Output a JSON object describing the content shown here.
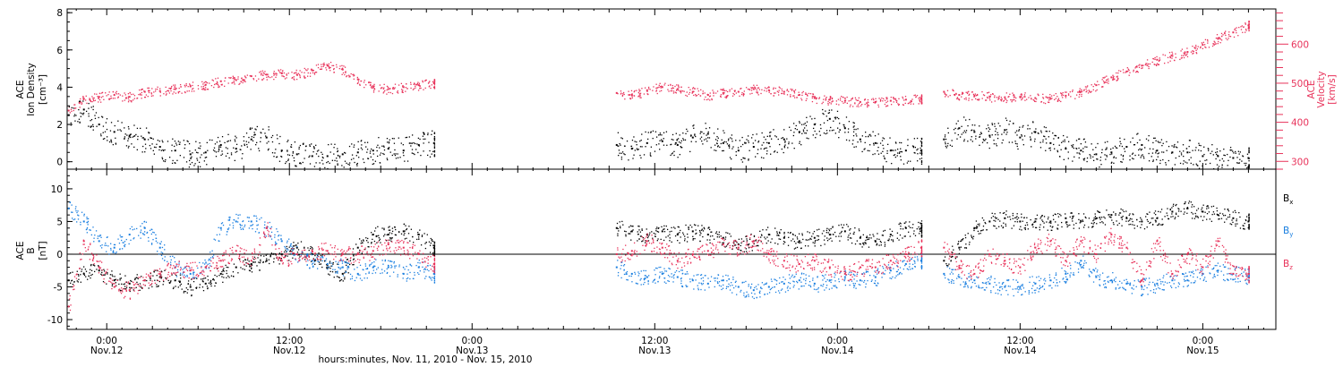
{
  "chart_data": [
    {
      "type": "scatter",
      "xlabel": "hours:minutes, Nov. 11, 2010 - Nov. 15, 2010",
      "x_ticks": [
        {
          "time": "0:00",
          "date": "Nov.12"
        },
        {
          "time": "12:00",
          "date": "Nov.12"
        },
        {
          "time": "0:00",
          "date": "Nov.13"
        },
        {
          "time": "12:00",
          "date": "Nov.13"
        },
        {
          "time": "0:00",
          "date": "Nov.14"
        },
        {
          "time": "12:00",
          "date": "Nov.14"
        },
        {
          "time": "0:00",
          "date": "Nov.15"
        }
      ],
      "xlim_hours_from_nov12": [
        -2.6,
        76.8
      ],
      "ylabel": "ACE\nIon Density\n[cm⁻³]",
      "ylim": [
        -0.4,
        8.2
      ],
      "yticks": [
        0,
        2,
        4,
        6,
        8
      ],
      "y2label": "ACE\nVelocity\n[km/s]",
      "y2lim": [
        280,
        690
      ],
      "y2ticks": [
        300,
        400,
        500,
        600
      ],
      "series": [
        {
          "name": "",
          "axis": "left",
          "color": "#000000",
          "segments": [
            {
              "x": [
                -2.5,
                -1.5,
                -0.5,
                0.5,
                1.5,
                2.5,
                3.5,
                4.5,
                5.5,
                6.5,
                7.5,
                8.5,
                9.5,
                10.5,
                11.5,
                12.5,
                13.5,
                14.5,
                15.5,
                16.5,
                17.5,
                18.5,
                19.5,
                20.5,
                21.5
              ],
              "y": [
                2.5,
                2.8,
                2.0,
                1.6,
                1.4,
                1.2,
                0.8,
                0.6,
                0.4,
                0.5,
                0.9,
                0.7,
                1.2,
                1.3,
                0.6,
                0.4,
                0.3,
                0.3,
                0.4,
                0.5,
                0.6,
                0.7,
                0.6,
                0.9,
                1.0
              ]
            },
            {
              "x": [
                33.5,
                34.5,
                35.5,
                36.5,
                37.5,
                38.5,
                39.5,
                40.5,
                41.5,
                42.5,
                43.5,
                44.5,
                45.5,
                46.5,
                47.5,
                48.5,
                49.5,
                50.5,
                51.5,
                52.5,
                53.5
              ],
              "y": [
                0.9,
                0.7,
                1.0,
                1.1,
                0.9,
                1.3,
                1.5,
                1.0,
                0.6,
                0.8,
                1.0,
                1.2,
                1.6,
                2.0,
                2.3,
                1.8,
                1.2,
                1.0,
                0.6,
                0.6,
                0.6
              ]
            },
            {
              "x": [
                55.0,
                56.0,
                57.0,
                58.0,
                59.0,
                60.0,
                61.0,
                62.0,
                63.0,
                64.0,
                65.0,
                66.0,
                67.0,
                68.0,
                69.0,
                70.0,
                71.0,
                72.0,
                73.0,
                74.0,
                75.0
              ],
              "y": [
                1.2,
                1.8,
                1.6,
                1.4,
                1.7,
                1.3,
                1.6,
                1.0,
                0.7,
                0.6,
                0.4,
                0.5,
                0.8,
                0.9,
                0.6,
                0.5,
                0.5,
                0.3,
                0.3,
                0.2,
                0.2
              ]
            }
          ]
        },
        {
          "name": "",
          "axis": "right",
          "color": "#e8325a",
          "segments": [
            {
              "x": [
                -2.5,
                -1.5,
                -0.5,
                0.5,
                1.5,
                2.5,
                3.5,
                4.5,
                5.5,
                6.5,
                7.5,
                8.5,
                9.5,
                10.5,
                11.5,
                12.5,
                13.5,
                14.5,
                15.5,
                16.5,
                17.5,
                18.5,
                19.5,
                20.5,
                21.5
              ],
              "y": [
                430,
                460,
                465,
                470,
                465,
                478,
                480,
                485,
                492,
                496,
                505,
                508,
                518,
                522,
                525,
                522,
                533,
                545,
                535,
                510,
                490,
                485,
                490,
                495,
                500
              ]
            },
            {
              "x": [
                33.5,
                34.5,
                35.5,
                36.5,
                37.5,
                38.5,
                39.5,
                40.5,
                41.5,
                42.5,
                43.5,
                44.5,
                45.5,
                46.5,
                47.5,
                48.5,
                49.5,
                50.5,
                51.5,
                52.5,
                53.5
              ],
              "y": [
                475,
                470,
                482,
                490,
                485,
                478,
                470,
                475,
                478,
                485,
                482,
                478,
                470,
                462,
                458,
                455,
                452,
                452,
                455,
                458,
                460
              ]
            },
            {
              "x": [
                55.0,
                56.0,
                57.0,
                58.0,
                59.0,
                60.0,
                61.0,
                62.0,
                63.0,
                64.0,
                65.0,
                66.0,
                67.0,
                68.0,
                69.0,
                70.0,
                71.0,
                72.0,
                73.0,
                74.0,
                75.0
              ],
              "y": [
                478,
                470,
                468,
                466,
                464,
                465,
                462,
                460,
                468,
                478,
                495,
                515,
                530,
                545,
                560,
                570,
                580,
                598,
                615,
                630,
                648
              ]
            }
          ]
        }
      ]
    },
    {
      "type": "scatter",
      "ylabel": "ACE\nB\n[nT]",
      "ylim": [
        -11.5,
        13
      ],
      "yticks": [
        -10,
        -5,
        0,
        5,
        10
      ],
      "zero_line": true,
      "series": [
        {
          "name": "Bx",
          "color": "#000000",
          "segments": [
            {
              "x": [
                -2.5,
                -1.5,
                -0.5,
                0.5,
                1.5,
                2.5,
                3.5,
                4.5,
                5.5,
                6.5,
                7.5,
                8.5,
                9.5,
                10.5,
                11.5,
                12.5,
                13.5,
                14.5,
                15.5,
                16.5,
                17.5,
                18.5,
                19.5,
                20.5,
                21.5
              ],
              "y": [
                -4.0,
                -3.0,
                -2.5,
                -4.0,
                -4.5,
                -4.0,
                -3.5,
                -4.0,
                -5.0,
                -4.5,
                -3.0,
                -2.0,
                -1.5,
                -1.0,
                0.0,
                1.0,
                0.0,
                -2.0,
                -3.0,
                1.0,
                3.0,
                3.0,
                3.5,
                3.0,
                1.0
              ]
            },
            {
              "x": [
                33.5,
                34.5,
                35.5,
                36.5,
                37.5,
                38.5,
                39.5,
                40.5,
                41.5,
                42.5,
                43.5,
                44.5,
                45.5,
                46.5,
                47.5,
                48.5,
                49.5,
                50.5,
                51.5,
                52.5,
                53.5
              ],
              "y": [
                4.0,
                3.5,
                3.0,
                3.5,
                3.0,
                3.5,
                3.0,
                2.5,
                1.5,
                2.0,
                3.0,
                2.5,
                2.0,
                2.5,
                3.0,
                3.5,
                2.5,
                2.0,
                3.0,
                4.0,
                4.0
              ]
            },
            {
              "x": [
                55.0,
                56.0,
                57.0,
                58.0,
                59.0,
                60.0,
                61.0,
                62.0,
                63.0,
                64.0,
                65.0,
                66.0,
                67.0,
                68.0,
                69.0,
                70.0,
                71.0,
                72.0,
                73.0,
                74.0,
                75.0
              ],
              "y": [
                -1.0,
                1.0,
                4.0,
                5.0,
                5.5,
                5.0,
                5.0,
                5.0,
                5.5,
                5.0,
                5.5,
                6.0,
                5.5,
                5.0,
                5.5,
                6.5,
                7.0,
                6.5,
                6.0,
                5.5,
                5.0
              ]
            }
          ]
        },
        {
          "name": "By",
          "color": "#1a7fe0",
          "segments": [
            {
              "x": [
                -2.5,
                -1.5,
                -0.5,
                0.5,
                1.5,
                2.5,
                3.5,
                4.5,
                5.5,
                6.5,
                7.5,
                8.5,
                9.5,
                10.5,
                11.5,
                12.5,
                13.5,
                14.5,
                15.5,
                16.5,
                17.5,
                18.5,
                19.5,
                20.5,
                21.5
              ],
              "y": [
                7.0,
                5.0,
                2.0,
                1.0,
                3.0,
                4.0,
                1.0,
                -2.0,
                -3.0,
                -2.0,
                4.0,
                5.0,
                5.0,
                4.0,
                2.0,
                0.0,
                -1.0,
                -1.5,
                -2.0,
                -3.0,
                -2.0,
                -2.0,
                -3.0,
                -2.0,
                -3.0
              ]
            },
            {
              "x": [
                33.5,
                34.5,
                35.5,
                36.5,
                37.5,
                38.5,
                39.5,
                40.5,
                41.5,
                42.5,
                43.5,
                44.5,
                45.5,
                46.5,
                47.5,
                48.5,
                49.5,
                50.5,
                51.5,
                52.5,
                53.5
              ],
              "y": [
                -2.0,
                -3.0,
                -3.5,
                -3.0,
                -3.5,
                -4.0,
                -4.5,
                -4.0,
                -5.0,
                -5.5,
                -5.0,
                -4.5,
                -4.0,
                -4.5,
                -4.0,
                -3.5,
                -4.0,
                -3.5,
                -2.5,
                -1.5,
                -1.0
              ]
            },
            {
              "x": [
                55.0,
                56.0,
                57.0,
                58.0,
                59.0,
                60.0,
                61.0,
                62.0,
                63.0,
                64.0,
                65.0,
                66.0,
                67.0,
                68.0,
                69.0,
                70.0,
                71.0,
                72.0,
                73.0,
                74.0,
                75.0
              ],
              "y": [
                -3.0,
                -3.5,
                -4.0,
                -4.5,
                -5.0,
                -5.0,
                -4.5,
                -4.0,
                -3.0,
                -1.0,
                -3.5,
                -4.0,
                -4.5,
                -5.0,
                -4.5,
                -4.0,
                -4.0,
                -3.0,
                -2.5,
                -3.0,
                -3.5
              ]
            }
          ]
        },
        {
          "name": "Bz",
          "color": "#e8325a",
          "segments": [
            {
              "x": [
                -2.5,
                -1.5,
                -0.5,
                0.5,
                1.5,
                2.5,
                3.5,
                4.5,
                5.5,
                6.5,
                7.5,
                8.5,
                9.5,
                10.5,
                11.5,
                12.5,
                13.5,
                14.5,
                15.5,
                16.5,
                17.5,
                18.5,
                19.5,
                20.5,
                21.5
              ],
              "y": [
                -8.0,
                2.0,
                -2.0,
                -5.0,
                -5.5,
                -4.0,
                -3.0,
                -2.0,
                -2.5,
                -2.0,
                -1.0,
                0.5,
                -1.0,
                4.0,
                -1.0,
                0.0,
                0.5,
                0.5,
                0.0,
                0.0,
                0.5,
                1.5,
                1.0,
                0.0,
                -1.5
              ]
            },
            {
              "x": [
                33.5,
                34.5,
                35.5,
                36.5,
                37.5,
                38.5,
                39.5,
                40.5,
                41.5,
                42.5,
                43.5,
                44.5,
                45.5,
                46.5,
                47.5,
                48.5,
                49.5,
                50.5,
                51.5,
                52.5,
                53.5
              ],
              "y": [
                0.0,
                0.5,
                2.0,
                1.0,
                -1.0,
                0.0,
                0.5,
                1.5,
                1.0,
                2.0,
                0.0,
                -1.0,
                -1.5,
                -1.0,
                -2.0,
                -3.0,
                -2.0,
                -2.0,
                -1.0,
                0.0,
                1.0
              ]
            },
            {
              "x": [
                55.0,
                56.0,
                57.0,
                58.0,
                59.0,
                60.0,
                61.0,
                62.0,
                63.0,
                64.0,
                65.0,
                66.0,
                67.0,
                68.0,
                69.0,
                70.0,
                71.0,
                72.0,
                73.0,
                74.0,
                75.0
              ],
              "y": [
                1.0,
                -2.0,
                -3.0,
                0.0,
                -1.0,
                -2.0,
                1.0,
                2.0,
                -1.0,
                2.0,
                0.0,
                3.0,
                1.0,
                -4.0,
                2.0,
                -3.0,
                0.0,
                -2.0,
                2.0,
                -3.0,
                -3.0
              ]
            }
          ]
        }
      ],
      "legend": {
        "placement": "right",
        "entries": [
          "Bx",
          "By",
          "Bz"
        ]
      }
    }
  ],
  "legend_text": {
    "bx": {
      "main": "B",
      "sub": "x"
    },
    "by": {
      "main": "B",
      "sub": "y"
    },
    "bz": {
      "main": "B",
      "sub": "z"
    }
  },
  "colors": {
    "density": "#000000",
    "velocity": "#e8325a",
    "bx": "#000000",
    "by": "#1a7fe0",
    "bz": "#e8325a"
  }
}
